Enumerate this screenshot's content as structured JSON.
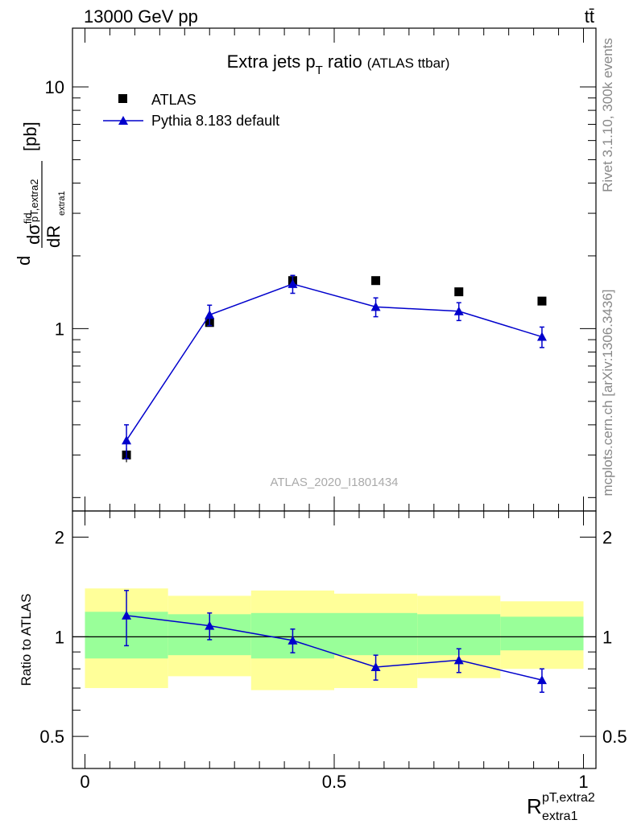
{
  "header": {
    "energy": "13000 GeV pp",
    "process": "tt̄"
  },
  "side_text": {
    "rivet": "Rivet 3.1.10,  300k events",
    "source": "mcplots.cern.ch [arXiv:1306.3436]"
  },
  "colors": {
    "data": "#000000",
    "mc": "#0000cc",
    "band_inner": "#99ff99",
    "band_outer": "#ffff99"
  },
  "chart_data": [
    {
      "panel": "main",
      "type": "scatter",
      "title": "Extra jets p",
      "title_sub": "T",
      "title_tail": " ratio",
      "title_note": "(ATLAS ttbar)",
      "watermark": "ATLAS_2020_I1801434",
      "ylabel": {
        "d": "d",
        "sigma": "dσ",
        "fid": "fid",
        "sub": "pT,extra2",
        "dR": "dR",
        "dR_sub": "extra1",
        "unit": "[pb]"
      },
      "yscale": "log",
      "ylim": [
        0.176,
        17.5
      ],
      "xlim": [
        -0.025,
        1.025
      ],
      "yticks": [
        1,
        10
      ],
      "yticklabels": [
        "1",
        "10"
      ],
      "legend": {
        "placement": "top-left",
        "data_label": "ATLAS",
        "mc_label": "Pythia 8.183 default"
      },
      "bin_edges": [
        0,
        0.1667,
        0.3333,
        0.5,
        0.6667,
        0.8333,
        1.0
      ],
      "data_x": [
        0.0833,
        0.25,
        0.4167,
        0.5833,
        0.75,
        0.9167
      ],
      "data_y": [
        0.3,
        1.06,
        1.58,
        1.58,
        1.42,
        1.3
      ],
      "data_err": [
        0.02,
        0.04,
        0.09,
        0.05,
        0.04,
        0.04
      ],
      "series": [
        {
          "name": "Pythia 8.183 default",
          "x": [
            0.0833,
            0.25,
            0.4167,
            0.5833,
            0.75,
            0.9167
          ],
          "y": [
            0.345,
            1.14,
            1.53,
            1.23,
            1.18,
            0.925
          ],
          "err": [
            0.055,
            0.11,
            0.13,
            0.11,
            0.1,
            0.09
          ]
        }
      ]
    },
    {
      "panel": "ratio",
      "type": "line",
      "ylabel": "Ratio to ATLAS",
      "xlabel": {
        "main": "R",
        "sup": "pT,extra2",
        "sub": "extra1"
      },
      "yscale": "log",
      "ylim": [
        0.4,
        2.4
      ],
      "xlim": [
        -0.025,
        1.025
      ],
      "yticks": [
        0.5,
        1,
        2
      ],
      "yticklabels": [
        "0.5",
        "1",
        "2"
      ],
      "xticks": [
        0,
        0.5,
        1
      ],
      "xticklabels": [
        "0",
        "0.5",
        "1"
      ],
      "bin_edges": [
        0,
        0.1667,
        0.3333,
        0.5,
        0.6667,
        0.8333,
        1.0
      ],
      "band_inner": [
        [
          0.86,
          1.19
        ],
        [
          0.88,
          1.17
        ],
        [
          0.86,
          1.18
        ],
        [
          0.88,
          1.18
        ],
        [
          0.88,
          1.17
        ],
        [
          0.91,
          1.15
        ]
      ],
      "band_outer": [
        [
          0.7,
          1.4
        ],
        [
          0.76,
          1.33
        ],
        [
          0.69,
          1.38
        ],
        [
          0.7,
          1.35
        ],
        [
          0.75,
          1.33
        ],
        [
          0.8,
          1.28
        ]
      ],
      "series": [
        {
          "name": "Pythia 8.183 default",
          "x": [
            0.0833,
            0.25,
            0.4167,
            0.5833,
            0.75,
            0.9167
          ],
          "y": [
            1.16,
            1.08,
            0.975,
            0.81,
            0.85,
            0.74
          ],
          "err": [
            0.22,
            0.1,
            0.08,
            0.07,
            0.07,
            0.06
          ]
        }
      ]
    }
  ]
}
